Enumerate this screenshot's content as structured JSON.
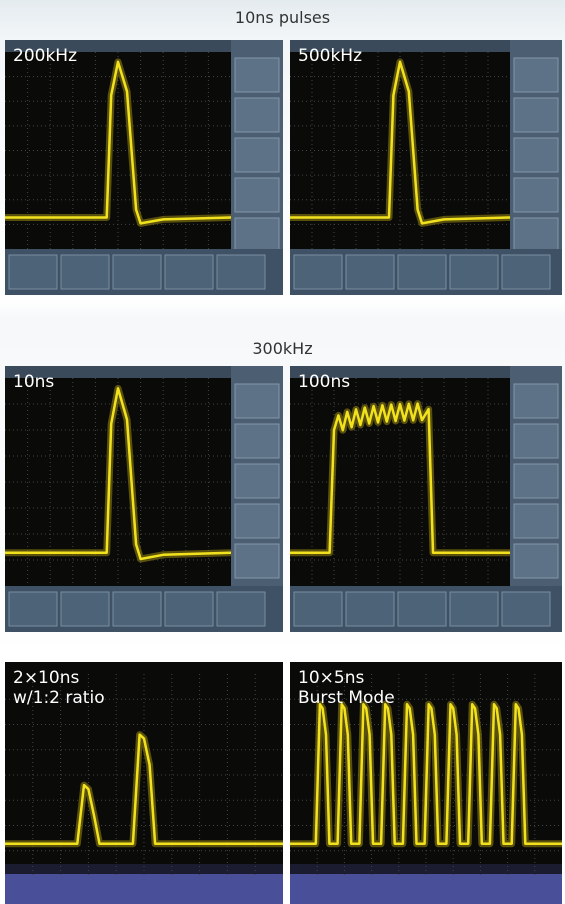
{
  "sections": [
    {
      "title": "10ns pulses",
      "panels": [
        {
          "label": [
            "200kHz"
          ]
        },
        {
          "label": [
            "500kHz"
          ]
        }
      ]
    },
    {
      "title": "300kHz",
      "panels": [
        {
          "label": [
            "10ns"
          ]
        },
        {
          "label": [
            "100ns"
          ]
        }
      ]
    },
    {
      "panels": [
        {
          "label": [
            "2×10ns",
            "w/1:2 ratio"
          ]
        },
        {
          "label": [
            "10×5ns",
            "Burst Mode"
          ]
        }
      ]
    }
  ]
}
